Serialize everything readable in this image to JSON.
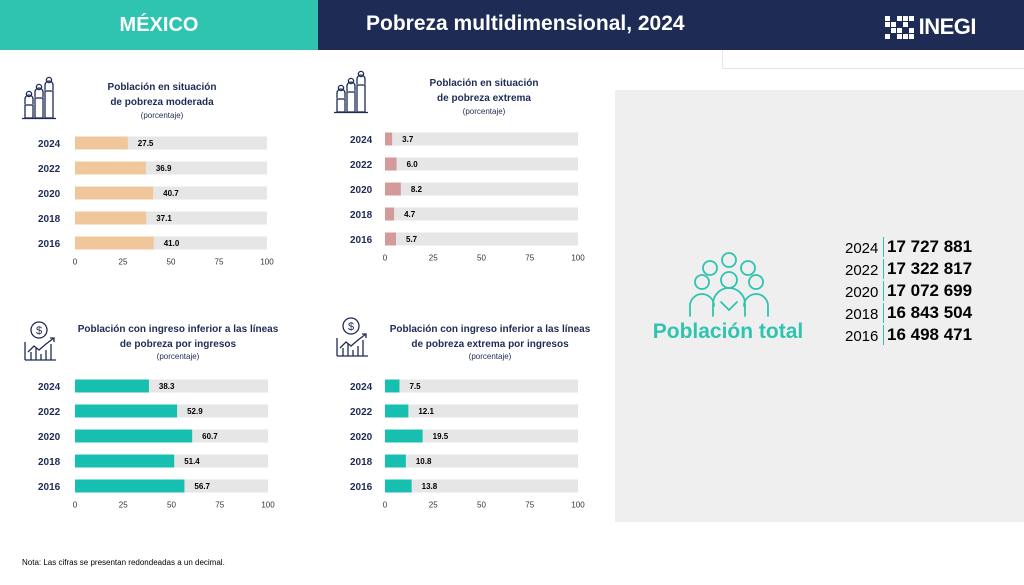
{
  "header": {
    "region": "MÉXICO",
    "title": "Pobreza multidimensional, 2024",
    "logo": "INEGI"
  },
  "icons": {
    "moderate": "people-bars-icon",
    "extreme": "people-bars-icon",
    "income": "money-chart-icon",
    "income_extreme": "money-chart-icon",
    "total": "group-people-icon"
  },
  "colors": {
    "moderate": "#f0c79b",
    "extreme": "#d49a9a",
    "income": "#17bfb0",
    "track": "#e6e6e6",
    "header_teal": "#2ec4b0",
    "header_navy": "#1e2b55"
  },
  "chart_data": [
    {
      "type": "bar",
      "orientation": "horizontal",
      "title": [
        "Población en situación",
        "de pobreza moderada"
      ],
      "subtitle": "(porcentaje)",
      "categories": [
        "2024",
        "2022",
        "2020",
        "2018",
        "2016"
      ],
      "values": [
        27.5,
        36.9,
        40.7,
        37.1,
        41.0
      ],
      "value_labels": [
        "27.5",
        "36.9",
        "40.7",
        "37.1",
        "41.0"
      ],
      "xlim": [
        0,
        100
      ],
      "xticks": [
        "0",
        "25",
        "50",
        "75",
        "100"
      ],
      "grid": false
    },
    {
      "type": "bar",
      "orientation": "horizontal",
      "title": [
        "Población en situación",
        "de pobreza extrema"
      ],
      "subtitle": "(porcentaje)",
      "categories": [
        "2024",
        "2022",
        "2020",
        "2018",
        "2016"
      ],
      "values": [
        3.7,
        6.0,
        8.2,
        4.7,
        5.7
      ],
      "value_labels": [
        "3.7",
        "6.0",
        "8.2",
        "4.7",
        "5.7"
      ],
      "xlim": [
        0,
        100
      ],
      "xticks": [
        "0",
        "25",
        "50",
        "75",
        "100"
      ],
      "grid": false
    },
    {
      "type": "bar",
      "orientation": "horizontal",
      "title": [
        "Población con ingreso inferior a las líneas",
        "de pobreza por ingresos"
      ],
      "subtitle": "(porcentaje)",
      "categories": [
        "2024",
        "2022",
        "2020",
        "2018",
        "2016"
      ],
      "values": [
        38.3,
        52.9,
        60.7,
        51.4,
        56.7
      ],
      "value_labels": [
        "38.3",
        "52.9",
        "60.7",
        "51.4",
        "56.7"
      ],
      "xlim": [
        0,
        100
      ],
      "xticks": [
        "0",
        "25",
        "50",
        "75",
        "100"
      ],
      "grid": false
    },
    {
      "type": "bar",
      "orientation": "horizontal",
      "title": [
        "Población con ingreso inferior a las líneas",
        "de pobreza extrema por ingresos"
      ],
      "subtitle": "(porcentaje)",
      "categories": [
        "2024",
        "2022",
        "2020",
        "2018",
        "2016"
      ],
      "values": [
        7.5,
        12.1,
        19.5,
        10.8,
        13.8
      ],
      "value_labels": [
        "7.5",
        "12.1",
        "19.5",
        "10.8",
        "13.8"
      ],
      "xlim": [
        0,
        100
      ],
      "xticks": [
        "0",
        "25",
        "50",
        "75",
        "100"
      ],
      "grid": false
    }
  ],
  "total": {
    "label": "Población total",
    "rows": [
      {
        "year": "2024",
        "value": "17 727 881"
      },
      {
        "year": "2022",
        "value": "17 322 817"
      },
      {
        "year": "2020",
        "value": "17 072 699"
      },
      {
        "year": "2018",
        "value": "16 843 504"
      },
      {
        "year": "2016",
        "value": "16 498 471"
      }
    ]
  },
  "note": "Nota: Las cifras se presentan redondeadas a un decimal."
}
